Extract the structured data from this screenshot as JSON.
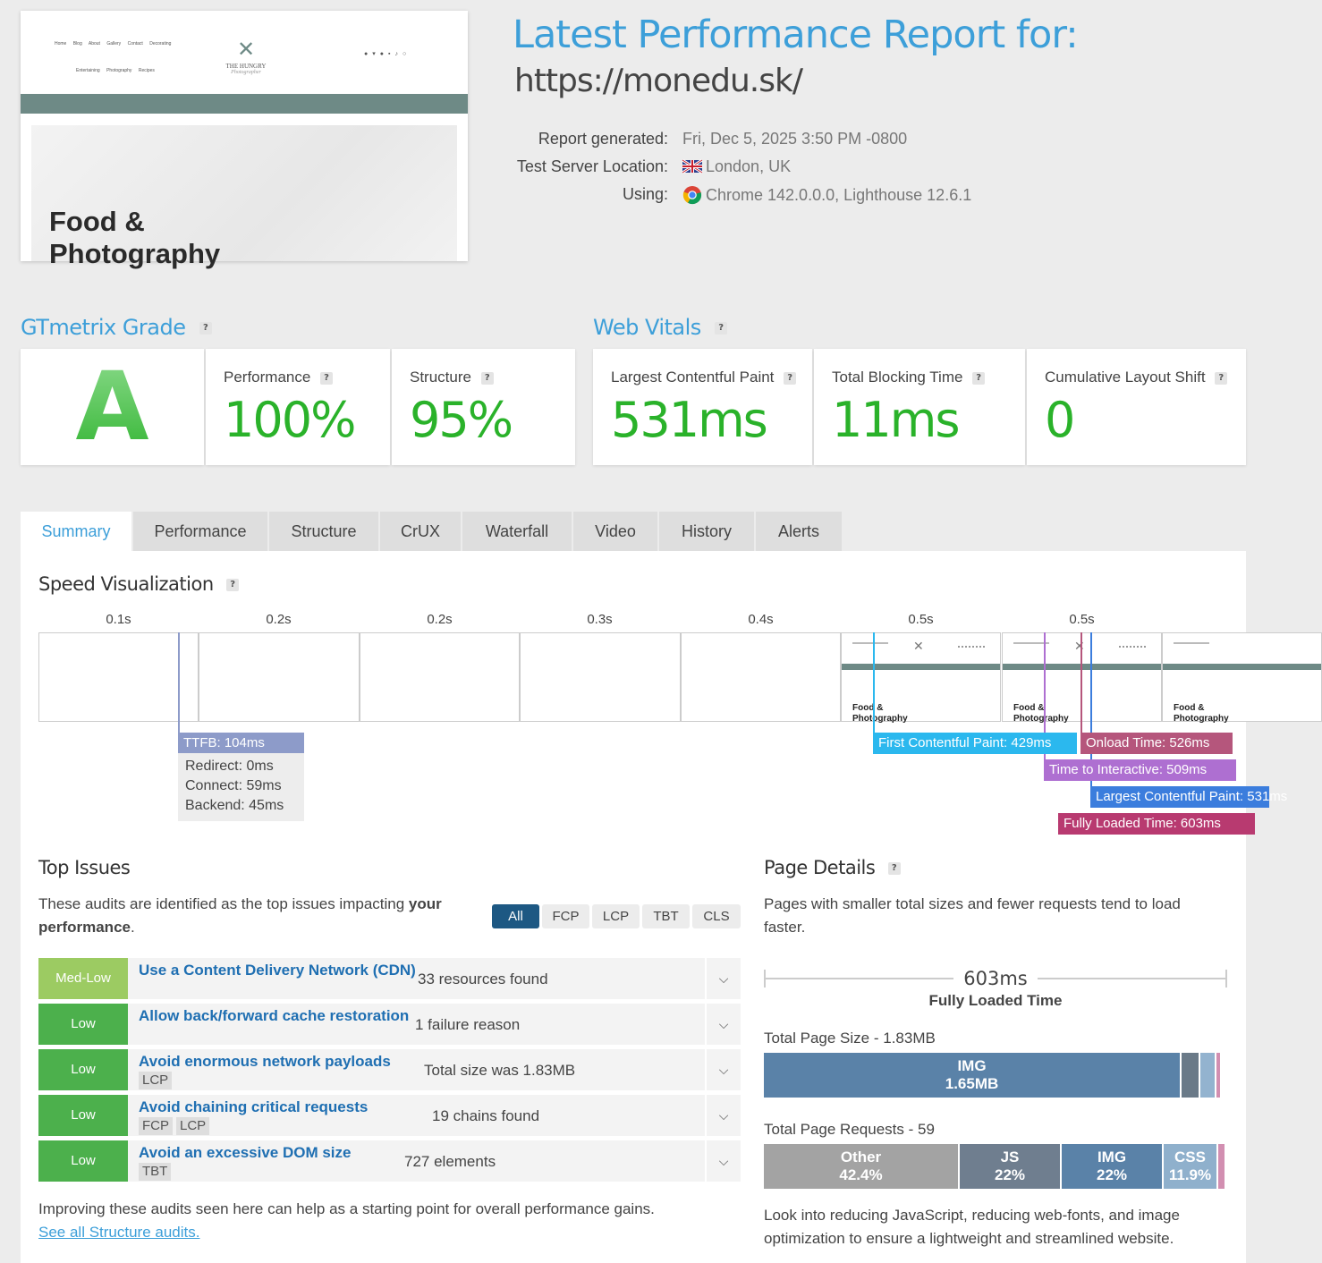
{
  "preview": {
    "nav_row1": [
      "Home",
      "Blog",
      "About",
      "Gallery",
      "Contact",
      "Decorating"
    ],
    "nav_row2": [
      "Entertaining",
      "Photography",
      "Recipes"
    ],
    "logo_text": "THE HUNGRY",
    "logo_script": "Photographer",
    "hero_title": "Food & Photography",
    "colors": {
      "band": "#6e8a86"
    }
  },
  "header": {
    "title": "Latest Performance Report for:",
    "url": "https://monedu.sk/",
    "meta": [
      {
        "label": "Report generated:",
        "value": "Fri, Dec 5, 2025 3:50 PM -0800",
        "icon": ""
      },
      {
        "label": "Test Server Location:",
        "value": "London, UK",
        "icon": "uk-flag-icon"
      },
      {
        "label": "Using:",
        "value": "Chrome 142.0.0.0, Lighthouse 12.6.1",
        "icon": "chrome-icon"
      }
    ]
  },
  "grade": {
    "title": "GTmetrix Grade",
    "letter": "A",
    "performance_label": "Performance",
    "performance_value": "100%",
    "structure_label": "Structure",
    "structure_value": "95%"
  },
  "vitals": {
    "title": "Web Vitals",
    "lcp_label": "Largest Contentful Paint",
    "lcp_value": "531ms",
    "tbt_label": "Total Blocking Time",
    "tbt_value": "11ms",
    "cls_label": "Cumulative Layout Shift",
    "cls_value": "0"
  },
  "tabs": [
    "Summary",
    "Performance",
    "Structure",
    "CrUX",
    "Waterfall",
    "Video",
    "History",
    "Alerts"
  ],
  "speed": {
    "title": "Speed Visualization",
    "frame_times": [
      "0.1s",
      "0.2s",
      "0.2s",
      "0.3s",
      "0.4s",
      "0.5s",
      "0.5s"
    ],
    "frame_title": "Food & Photography",
    "ttfb": "TTFB: 104ms",
    "redirect": "Redirect: 0ms",
    "connect": "Connect: 59ms",
    "backend": "Backend: 45ms",
    "fcp": "First Contentful Paint: 429ms",
    "onload": "Onload Time: 526ms",
    "tti": "Time to Interactive: 509ms",
    "lcp": "Largest Contentful Paint: 531ms",
    "fully_loaded": "Fully Loaded Time: 603ms",
    "colors": {
      "ttfb": "#8d9bc9",
      "fcp": "#2bb8ee",
      "onload": "#b5567c",
      "tti": "#ae6fd1",
      "lcp": "#3b7ddd",
      "fully": "#b83a70"
    }
  },
  "issues": {
    "title": "Top Issues",
    "desc_pre": "These audits are identified as the top issues impacting ",
    "desc_bold1": "your",
    "desc_bold2": "performance",
    "desc_post": ".",
    "filters": [
      "All",
      "FCP",
      "LCP",
      "TBT",
      "CLS"
    ],
    "items": [
      {
        "severity": "Med-Low",
        "title": "Use a Content Delivery Network (CDN)",
        "detail": "33 resources found",
        "tags": []
      },
      {
        "severity": "Low",
        "title": "Allow back/forward cache restoration",
        "detail": "1 failure reason",
        "tags": []
      },
      {
        "severity": "Low",
        "title": "Avoid enormous network payloads",
        "detail": "Total size was 1.83MB",
        "tags": [
          "LCP"
        ]
      },
      {
        "severity": "Low",
        "title": "Avoid chaining critical requests",
        "detail": "19 chains found",
        "tags": [
          "FCP",
          "LCP"
        ]
      },
      {
        "severity": "Low",
        "title": "Avoid an excessive DOM size",
        "detail": "727 elements",
        "tags": [
          "TBT"
        ]
      }
    ],
    "footer": "Improving these audits seen here can help as a starting point for overall performance gains.",
    "link": "See all Structure audits.",
    "colors": {
      "medlow": "#9ccb62",
      "low": "#4cb04c"
    }
  },
  "details": {
    "title": "Page Details",
    "desc": "Pages with smaller total sizes and fewer requests tend to load faster.",
    "fully_value": "603ms",
    "fully_label": "Fully Loaded Time",
    "size_label": "Total Page Size - 1.83MB",
    "size_bar": [
      {
        "label": "IMG",
        "value": "1.65MB",
        "fraction": 0.906,
        "color": "#5a82a8"
      },
      {
        "label": "",
        "value": "",
        "fraction": 0.04,
        "color": "#6a7a88"
      },
      {
        "label": "",
        "value": "",
        "fraction": 0.034,
        "color": "#93b3cf"
      },
      {
        "label": "",
        "value": "",
        "fraction": 0.012,
        "color": "#d28fb1"
      }
    ],
    "requests_label": "Total Page Requests - 59",
    "requests_bar": [
      {
        "label": "Other",
        "value": "42.4%",
        "fraction": 0.424,
        "color": "#a3a3a3"
      },
      {
        "label": "JS",
        "value": "22%",
        "fraction": 0.22,
        "color": "#6f7e8f"
      },
      {
        "label": "IMG",
        "value": "22%",
        "fraction": 0.22,
        "color": "#5a82a8"
      },
      {
        "label": "CSS",
        "value": "11.9%",
        "fraction": 0.119,
        "color": "#8fb0cc"
      },
      {
        "label": "",
        "value": "",
        "fraction": 0.017,
        "color": "#d28fb1"
      }
    ],
    "footer": "Look into reducing JavaScript, reducing web-fonts, and image optimization to ensure a lightweight and streamlined website."
  }
}
